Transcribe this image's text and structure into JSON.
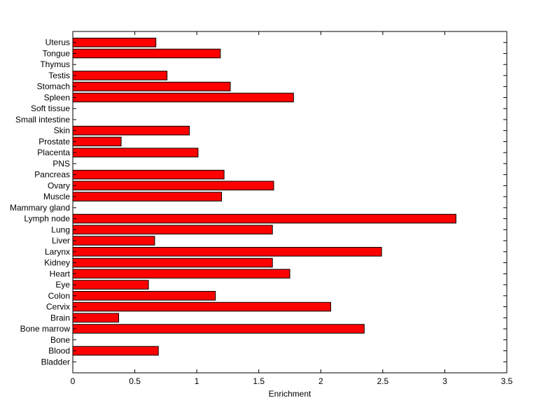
{
  "chart_data": {
    "type": "bar",
    "orientation": "horizontal",
    "categories": [
      "Bladder",
      "Blood",
      "Bone",
      "Bone marrow",
      "Brain",
      "Cervix",
      "Colon",
      "Eye",
      "Heart",
      "Kidney",
      "Larynx",
      "Liver",
      "Lung",
      "Lymph node",
      "Mammary gland",
      "Muscle",
      "Ovary",
      "Pancreas",
      "PNS",
      "Placenta",
      "Prostate",
      "Skin",
      "Small intestine",
      "Soft tissue",
      "Spleen",
      "Stomach",
      "Testis",
      "Thymus",
      "Tongue",
      "Uterus"
    ],
    "values": [
      0,
      0.69,
      0,
      2.35,
      0.37,
      2.08,
      1.15,
      0.61,
      1.75,
      1.61,
      2.49,
      0.66,
      1.61,
      3.09,
      0,
      1.2,
      1.62,
      1.22,
      0,
      1.01,
      0.39,
      0.94,
      0,
      0,
      1.78,
      1.27,
      0.76,
      0,
      1.19,
      0.67
    ],
    "xlabel": "Enrichment",
    "ylabel": "",
    "title": "",
    "xlim": [
      0,
      3.5
    ],
    "xticks": [
      "0",
      "0.5",
      "1",
      "1.5",
      "2",
      "2.5",
      "3",
      "3.5"
    ],
    "bar_color": "#ff0000",
    "grid": false,
    "legend": "none"
  }
}
